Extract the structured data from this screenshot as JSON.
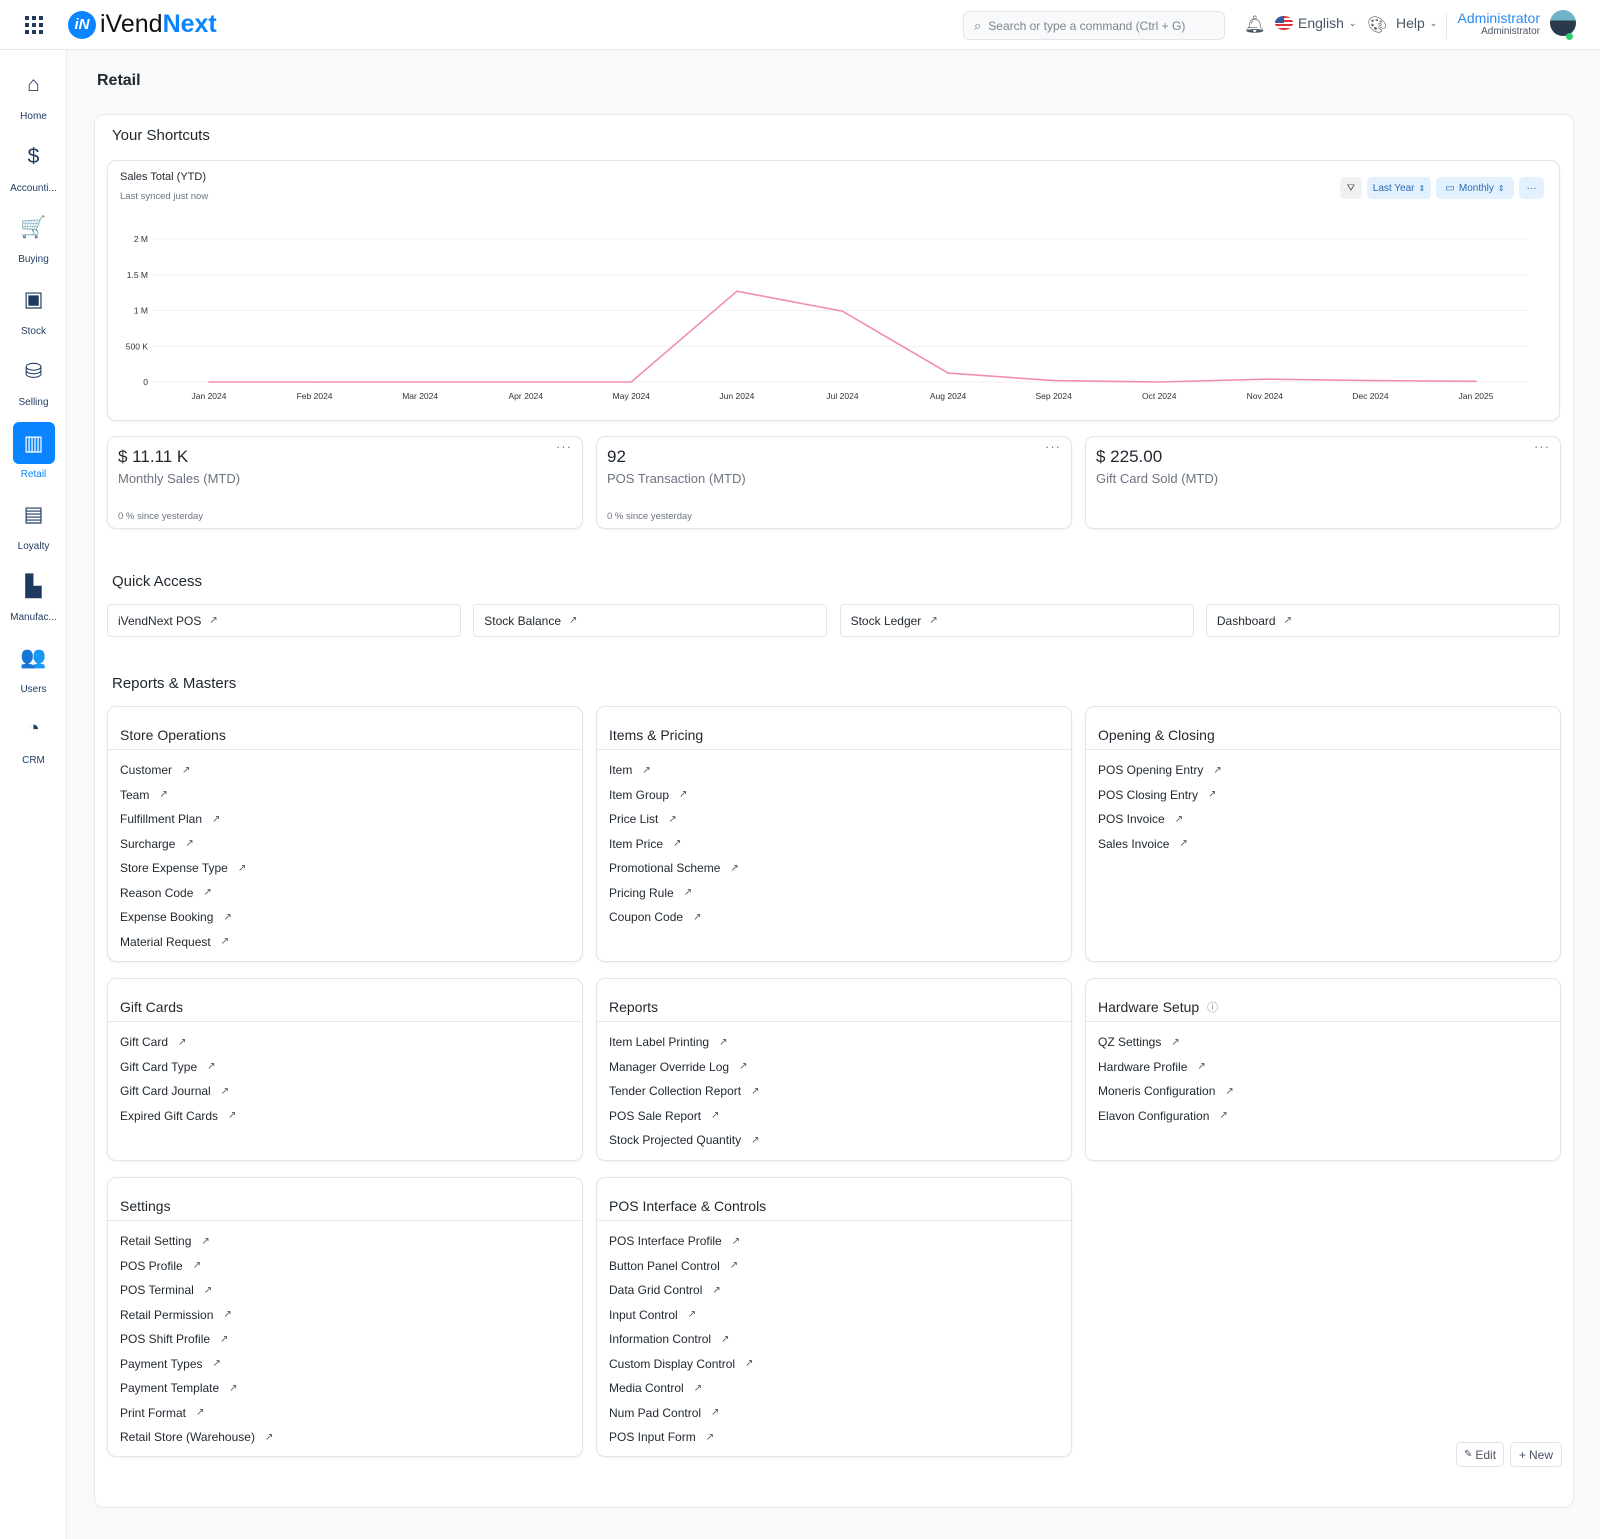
{
  "header": {
    "logo_a": "iVend",
    "logo_b": "Next",
    "search_placeholder": "Search or type a command (Ctrl + G)",
    "language": "English",
    "help": "Help",
    "user_name": "Administrator",
    "user_role": "Administrator"
  },
  "sidebar": {
    "items": [
      {
        "label": "Home",
        "icon": "home-icon",
        "glyph": "⌂"
      },
      {
        "label": "Accounti...",
        "icon": "dollar-icon",
        "glyph": "$"
      },
      {
        "label": "Buying",
        "icon": "cart-icon",
        "glyph": "🛒"
      },
      {
        "label": "Stock",
        "icon": "box-icon",
        "glyph": "▣"
      },
      {
        "label": "Selling",
        "icon": "bag-icon",
        "glyph": "⛁"
      },
      {
        "label": "Retail",
        "icon": "barcode-icon",
        "glyph": "▥",
        "active": true
      },
      {
        "label": "Loyalty",
        "icon": "id-card-icon",
        "glyph": "▤"
      },
      {
        "label": "Manufac...",
        "icon": "factory-icon",
        "glyph": "▙"
      },
      {
        "label": "Users",
        "icon": "users-icon",
        "glyph": "👥"
      },
      {
        "label": "CRM",
        "icon": "pie-chart-icon",
        "glyph": "◔"
      }
    ]
  },
  "page": {
    "title": "Retail"
  },
  "shortcuts": {
    "title": "Your Shortcuts",
    "chart_title": "Sales Total (YTD)",
    "chart_sub": "Last synced just now",
    "period": "Last Year",
    "interval": "Monthly",
    "more": "···"
  },
  "chart_data": {
    "type": "line",
    "title": "Sales Total (YTD)",
    "categories": [
      "Jan 2024",
      "Feb 2024",
      "Mar 2024",
      "Apr 2024",
      "May 2024",
      "Jun 2024",
      "Jul 2024",
      "Aug 2024",
      "Sep 2024",
      "Oct 2024",
      "Nov 2024",
      "Dec 2024",
      "Jan 2025"
    ],
    "values": [
      0,
      0,
      0,
      0,
      0,
      1270000,
      990000,
      125000,
      20000,
      0,
      40000,
      20000,
      10000
    ],
    "yticks": [
      0,
      500000,
      1000000,
      1500000,
      2000000
    ],
    "ytick_labels": [
      "0",
      "500 K",
      "1 M",
      "1.5 M",
      "2 M"
    ],
    "ylim": [
      0,
      2000000
    ],
    "color": "#f28db2",
    "grid": true
  },
  "number_cards": [
    {
      "value": "$ 11.11 K",
      "label": "Monthly Sales (MTD)",
      "foot": "0 % since yesterday"
    },
    {
      "value": "92",
      "label": "POS Transaction (MTD)",
      "foot": "0 % since yesterday"
    },
    {
      "value": "$ 225.00",
      "label": "Gift Card Sold (MTD)"
    }
  ],
  "quick_access": {
    "title": "Quick Access",
    "items": [
      "iVendNext POS",
      "Stock Balance",
      "Stock Ledger",
      "Dashboard"
    ]
  },
  "reports": {
    "title": "Reports & Masters",
    "cards": [
      {
        "title": "Store Operations",
        "items": [
          "Customer",
          "Team",
          "Fulfillment Plan",
          "Surcharge",
          "Store Expense Type",
          "Reason Code",
          "Expense Booking",
          "Material Request"
        ]
      },
      {
        "title": "Items & Pricing",
        "items": [
          "Item",
          "Item Group",
          "Price List",
          "Item Price",
          "Promotional Scheme",
          "Pricing Rule",
          "Coupon Code"
        ]
      },
      {
        "title": "Opening & Closing",
        "items": [
          "POS Opening Entry",
          "POS Closing Entry",
          "POS Invoice",
          "Sales Invoice"
        ]
      },
      {
        "title": "Gift Cards",
        "items": [
          "Gift Card",
          "Gift Card Type",
          "Gift Card Journal",
          "Expired Gift Cards"
        ]
      },
      {
        "title": "Reports",
        "items": [
          "Item Label Printing",
          "Manager Override Log",
          "Tender Collection Report",
          "POS Sale Report",
          "Stock Projected Quantity"
        ]
      },
      {
        "title": "Hardware Setup",
        "help": true,
        "items": [
          "QZ Settings",
          "Hardware Profile",
          "Moneris Configuration",
          "Elavon Configuration"
        ]
      },
      {
        "title": "Settings",
        "items": [
          "Retail Setting",
          "POS Profile",
          "POS Terminal",
          "Retail Permission",
          "POS Shift Profile",
          "Payment Types",
          "Payment Template",
          "Print Format",
          "Retail Store (Warehouse)"
        ]
      },
      {
        "title": "POS Interface & Controls",
        "items": [
          "POS Interface Profile",
          "Button Panel Control",
          "Data Grid Control",
          "Input Control",
          "Information Control",
          "Custom Display Control",
          "Media Control",
          "Num Pad Control",
          "POS Input Form"
        ]
      }
    ]
  },
  "footer": {
    "edit": "Edit",
    "new": "New"
  }
}
